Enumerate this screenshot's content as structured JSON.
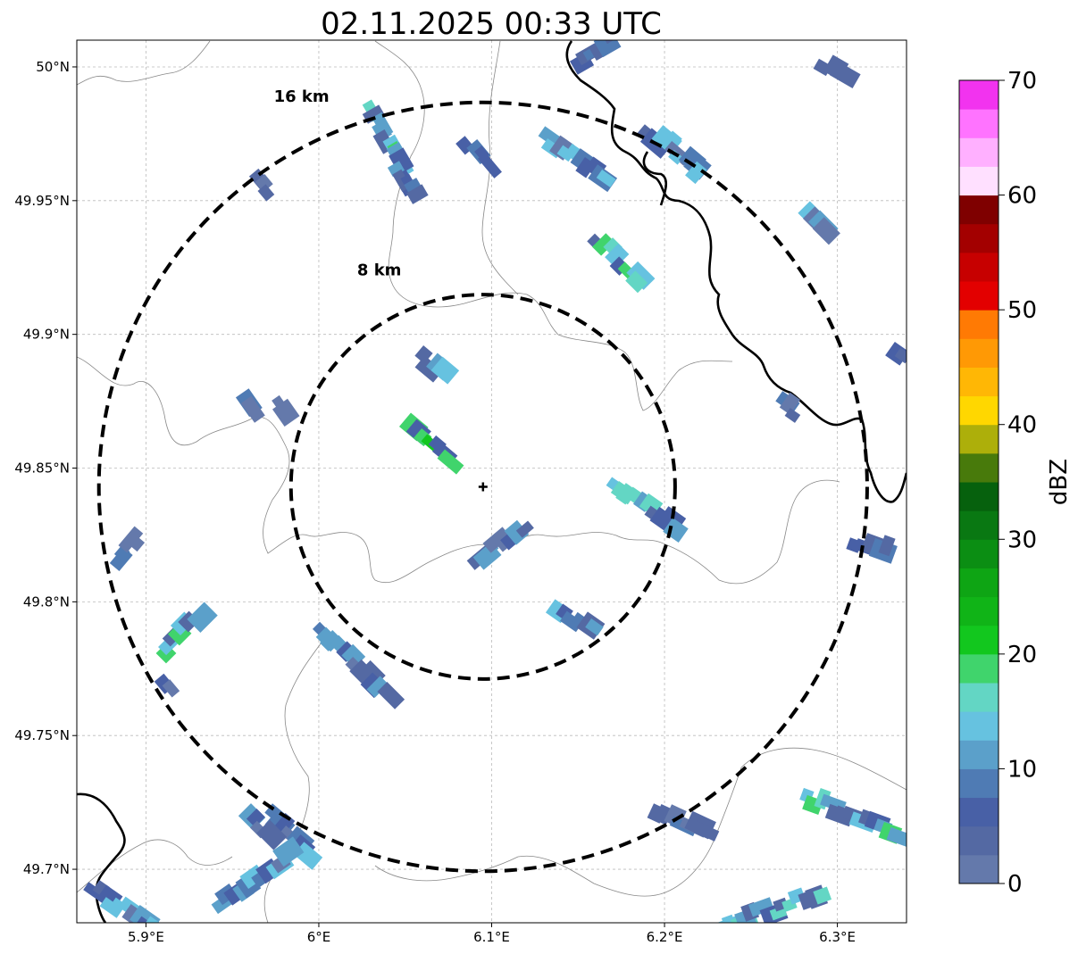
{
  "title": "02.11.2025 00:33 UTC",
  "map": {
    "lon_range": [
      5.86,
      6.34
    ],
    "lat_range": [
      49.68,
      50.01
    ],
    "lon_ticks": [
      {
        "value": 5.9,
        "label": "5.9°E"
      },
      {
        "value": 6.0,
        "label": "6°E"
      },
      {
        "value": 6.1,
        "label": "6.1°E"
      },
      {
        "value": 6.2,
        "label": "6.2°E"
      },
      {
        "value": 6.3,
        "label": "6.3°E"
      }
    ],
    "lat_ticks": [
      {
        "value": 50.0,
        "label": "50°N"
      },
      {
        "value": 49.95,
        "label": "49.95°N"
      },
      {
        "value": 49.9,
        "label": "49.9°N"
      },
      {
        "value": 49.85,
        "label": "49.85°N"
      },
      {
        "value": 49.8,
        "label": "49.8°N"
      },
      {
        "value": 49.75,
        "label": "49.75°N"
      },
      {
        "value": 49.7,
        "label": "49.7°N"
      }
    ],
    "grid": true,
    "center": {
      "lon": 6.095,
      "lat": 49.843
    },
    "rings": [
      {
        "label": "8 km",
        "radius_km": 8,
        "label_lon": 6.035,
        "label_lat": 49.922
      },
      {
        "label": "16 km",
        "radius_km": 16,
        "label_lon": 5.99,
        "label_lat": 49.987
      }
    ]
  },
  "colorbar": {
    "label": "dBZ",
    "ticks": [
      0,
      10,
      20,
      30,
      40,
      50,
      60,
      70
    ],
    "colors": [
      "#6479ab",
      "#5469a3",
      "#4860a6",
      "#4f7bb4",
      "#5ba0ca",
      "#66c2e0",
      "#63d6c4",
      "#40d46c",
      "#12c71e",
      "#10b417",
      "#0ea514",
      "#0b8e13",
      "#097812",
      "#06610d",
      "#487a0b",
      "#adaf0a",
      "#ffd700",
      "#ffb705",
      "#ff9905",
      "#ff7a04",
      "#e30000",
      "#c70000",
      "#a30000",
      "#7f0000",
      "#ffe0ff",
      "#ffb0ff",
      "#ff73ff",
      "#f233ef"
    ]
  }
}
